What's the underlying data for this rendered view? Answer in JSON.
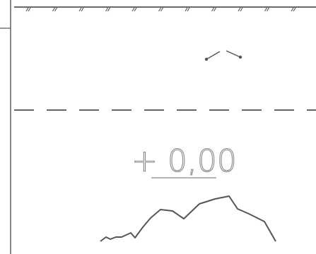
{
  "drawing": {
    "elevation_label": "+ 0,00",
    "line_color": "#555555",
    "dash_color": "#333333",
    "label_color": "#8a8a8a",
    "background": "#ffffff"
  }
}
